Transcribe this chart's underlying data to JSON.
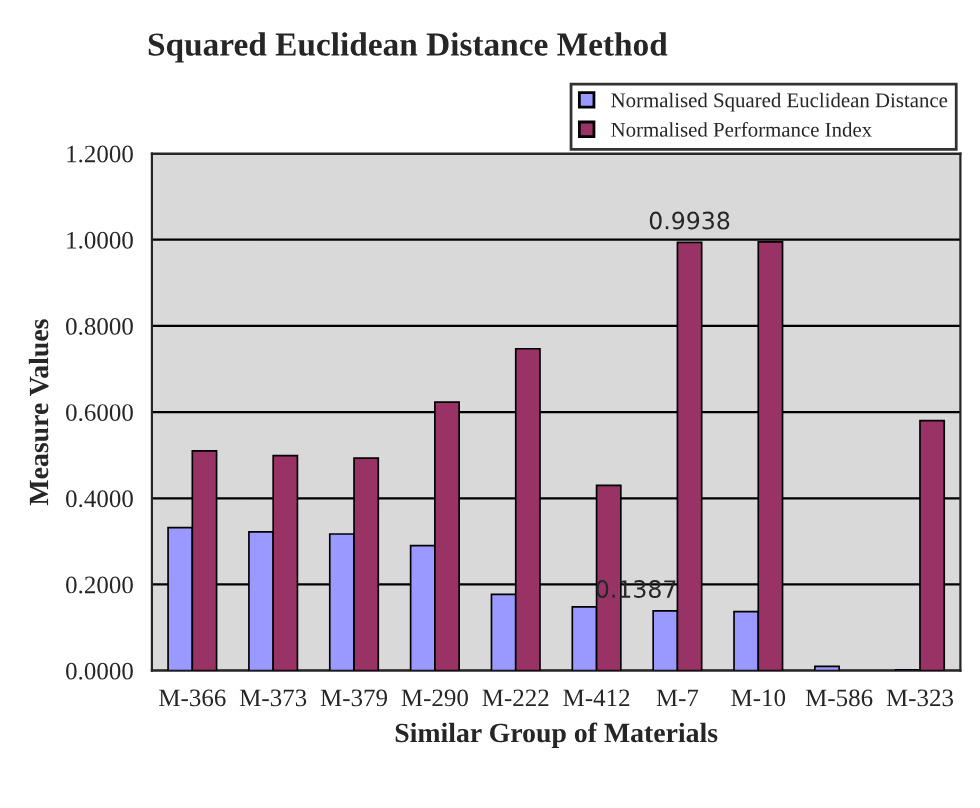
{
  "chart_data": {
    "type": "bar",
    "title": "Squared Euclidean Distance Method",
    "xlabel": "Similar Group of Materials",
    "ylabel": "Measure Values",
    "categories": [
      "M-366",
      "M-373",
      "M-379",
      "M-290",
      "M-222",
      "M-412",
      "M-7",
      "M-10",
      "M-586",
      "M-323"
    ],
    "series": [
      {
        "name": "Normalised Squared Euclidean Distance",
        "color": "#9999ff",
        "values": [
          0.332,
          0.322,
          0.317,
          0.29,
          0.177,
          0.148,
          0.1387,
          0.137,
          0.01,
          0.002
        ],
        "value_labels": [
          null,
          null,
          null,
          null,
          null,
          null,
          "0.1387",
          null,
          null,
          null
        ]
      },
      {
        "name": "Normalised Performance Index",
        "color": "#993366",
        "values": [
          0.51,
          0.499,
          0.493,
          0.623,
          0.747,
          0.43,
          0.9938,
          0.995,
          null,
          0.58
        ],
        "value_labels": [
          null,
          null,
          null,
          null,
          null,
          null,
          "0.9938",
          null,
          null,
          null
        ]
      }
    ],
    "ylim": [
      0,
      1.2
    ],
    "yticks": [
      {
        "value": 0,
        "label": "0.0000"
      },
      {
        "value": 0.2,
        "label": "0.2000"
      },
      {
        "value": 0.4,
        "label": "0.4000"
      },
      {
        "value": 0.6,
        "label": "0.6000"
      },
      {
        "value": 0.8,
        "label": "0.8000"
      },
      {
        "value": 1.0,
        "label": "1.0000"
      },
      {
        "value": 1.2,
        "label": "1.2000"
      }
    ],
    "grid": "y",
    "legend": "top right"
  }
}
